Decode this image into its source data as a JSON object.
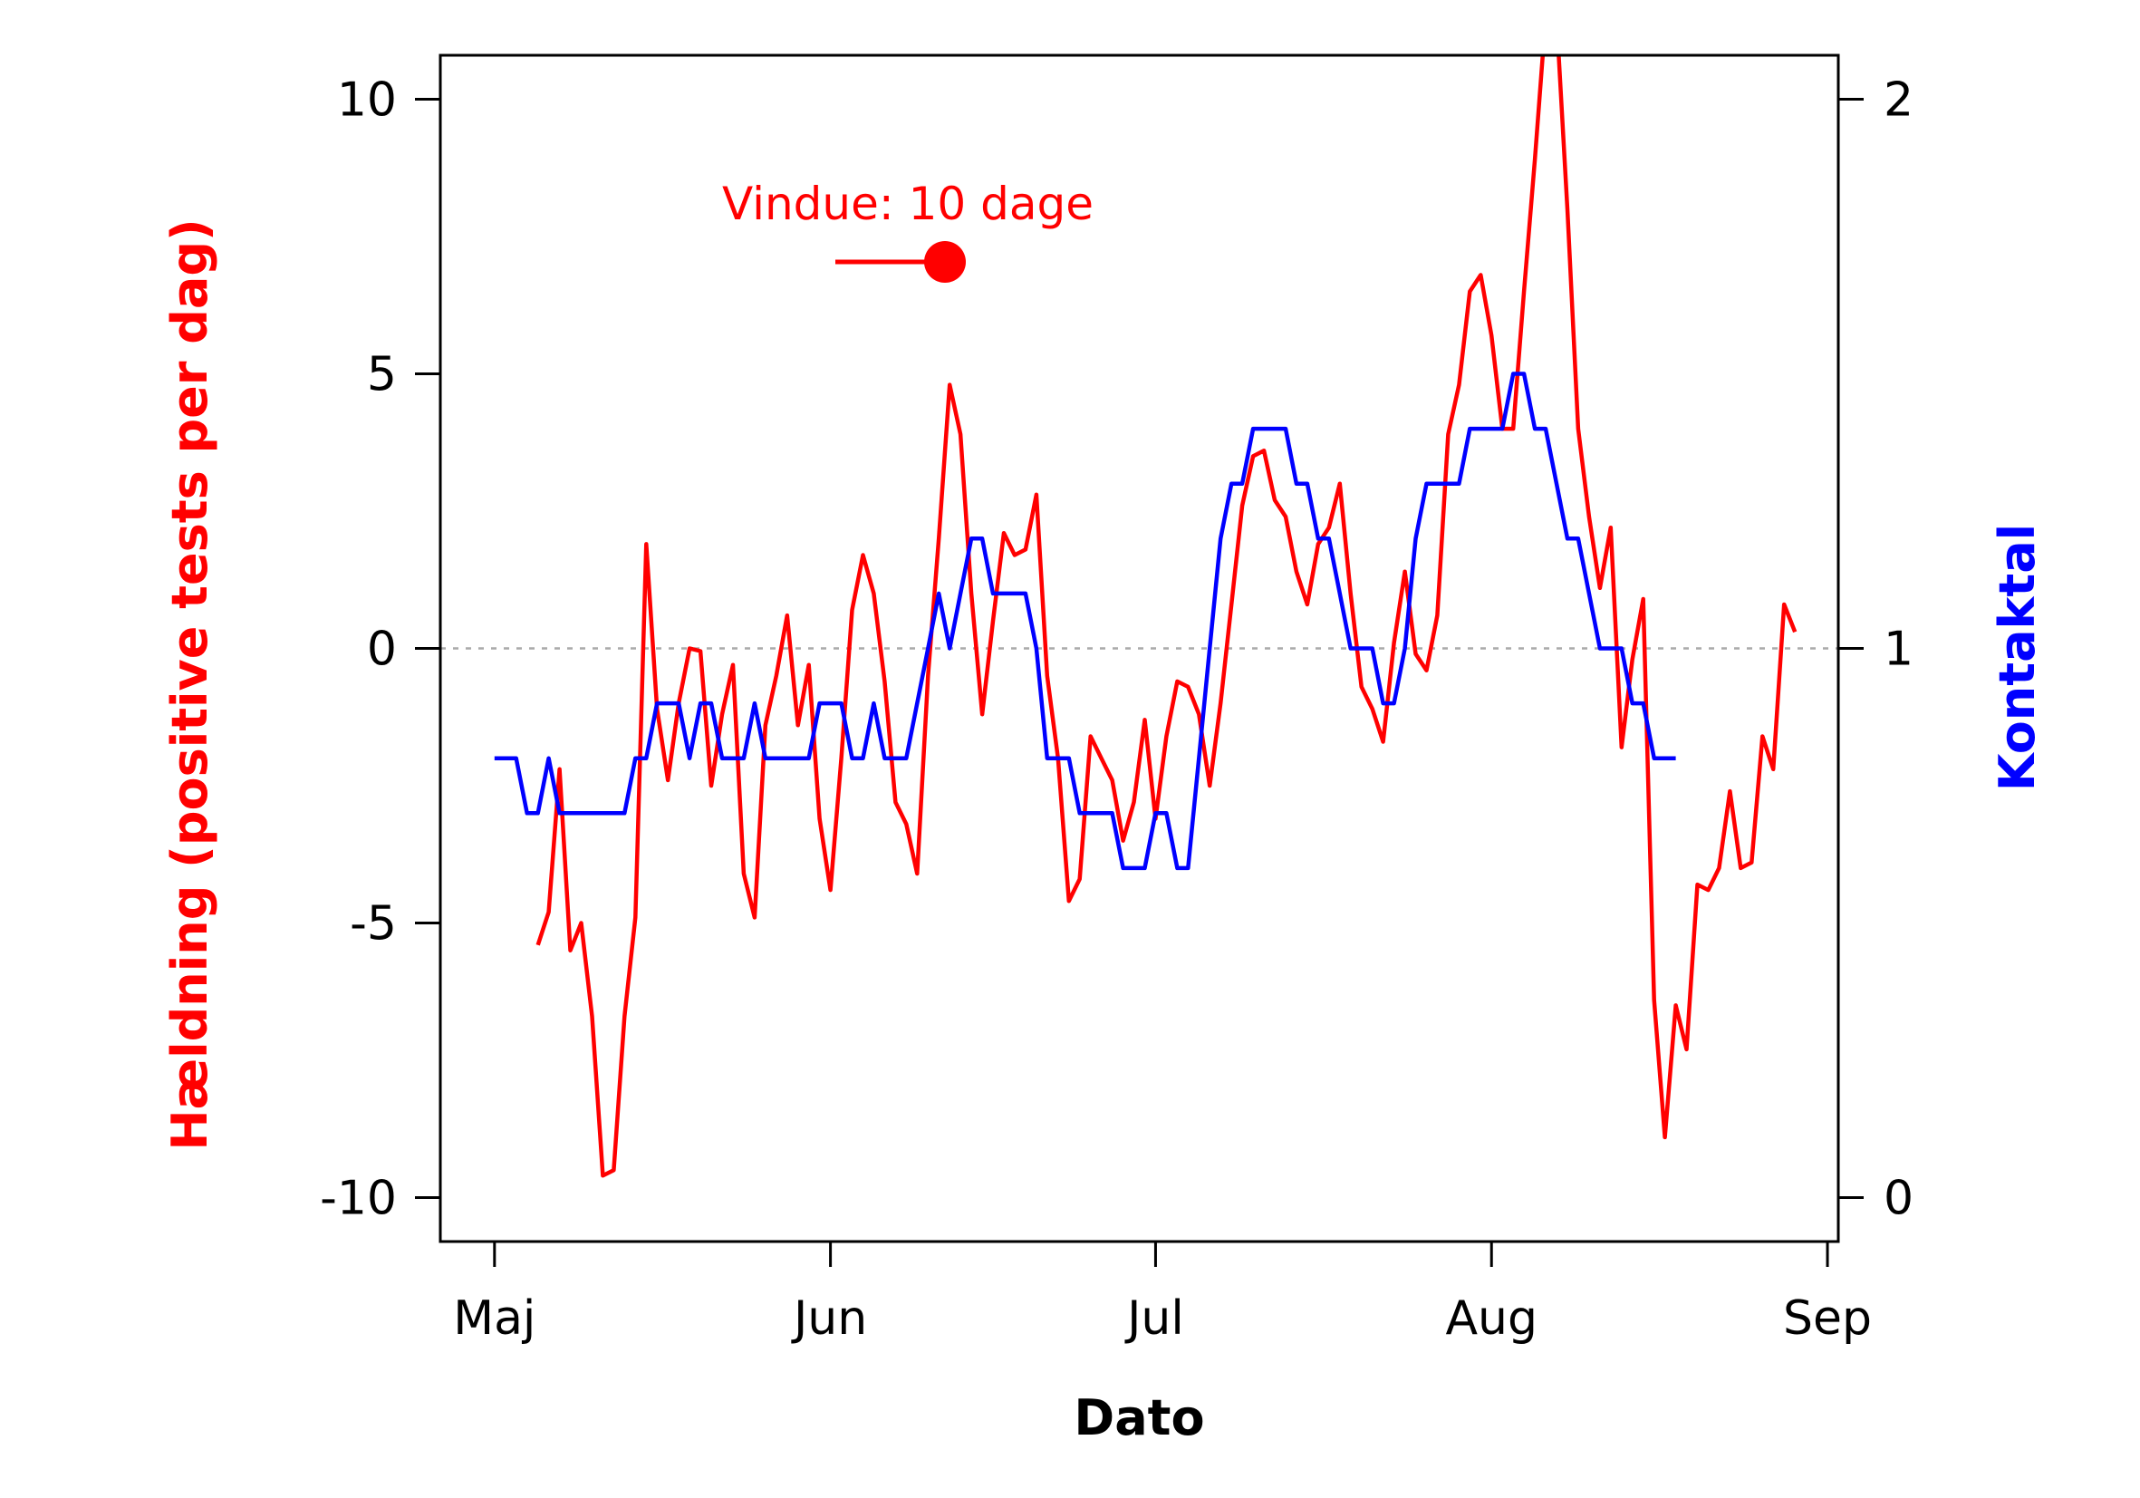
{
  "chart_data": {
    "type": "line",
    "x_axis": {
      "title": "Dato",
      "ticks": [
        {
          "label": "Maj",
          "date": "2020-05-01"
        },
        {
          "label": "Jun",
          "date": "2020-06-01"
        },
        {
          "label": "Jul",
          "date": "2020-07-01"
        },
        {
          "label": "Aug",
          "date": "2020-08-01"
        },
        {
          "label": "Sep",
          "date": "2020-09-01"
        }
      ],
      "range": [
        "2020-04-26",
        "2020-09-02"
      ]
    },
    "y_left": {
      "title": "Hældning (positive tests per dag)",
      "color": "#ff0000",
      "ticks": [
        10,
        5,
        0,
        -5,
        -10
      ],
      "tick_labels": [
        "10",
        "5",
        "0",
        "-5",
        "-10"
      ],
      "range": [
        -10.8,
        10.8
      ]
    },
    "y_right": {
      "title": "Kontaktal",
      "color": "#0000ff",
      "ticks": [
        2,
        1,
        0
      ],
      "tick_labels": [
        "2",
        "1",
        "0"
      ],
      "range": [
        -0.08,
        2.08
      ]
    },
    "reference_line": {
      "axis": "right",
      "value": 1,
      "style": "dashed",
      "color": "#aaaaaa"
    },
    "annotation": {
      "text": "Vindue: 10 dage",
      "color": "#ff0000"
    },
    "series": [
      {
        "axis": "left",
        "color": "#ff0000",
        "points": [
          [
            "2020-05-05",
            -5.4
          ],
          [
            "2020-05-06",
            -4.8
          ],
          [
            "2020-05-07",
            -2.2
          ],
          [
            "2020-05-08",
            -5.5
          ],
          [
            "2020-05-09",
            -5.0
          ],
          [
            "2020-05-10",
            -6.7
          ],
          [
            "2020-05-11",
            -9.6
          ],
          [
            "2020-05-12",
            -9.5
          ],
          [
            "2020-05-13",
            -6.7
          ],
          [
            "2020-05-14",
            -4.9
          ],
          [
            "2020-05-15",
            1.9
          ],
          [
            "2020-05-16",
            -1.1
          ],
          [
            "2020-05-17",
            -2.4
          ],
          [
            "2020-05-18",
            -1.0
          ],
          [
            "2020-05-19",
            0.0
          ],
          [
            "2020-05-20",
            -0.05
          ],
          [
            "2020-05-21",
            -2.5
          ],
          [
            "2020-05-22",
            -1.2
          ],
          [
            "2020-05-23",
            -0.3
          ],
          [
            "2020-05-24",
            -4.1
          ],
          [
            "2020-05-25",
            -4.9
          ],
          [
            "2020-05-26",
            -1.4
          ],
          [
            "2020-05-27",
            -0.5
          ],
          [
            "2020-05-28",
            0.6
          ],
          [
            "2020-05-29",
            -1.4
          ],
          [
            "2020-05-30",
            -0.3
          ],
          [
            "2020-05-31",
            -3.1
          ],
          [
            "2020-06-01",
            -4.4
          ],
          [
            "2020-06-02",
            -2.0
          ],
          [
            "2020-06-03",
            0.7
          ],
          [
            "2020-06-04",
            1.7
          ],
          [
            "2020-06-05",
            1.0
          ],
          [
            "2020-06-06",
            -0.6
          ],
          [
            "2020-06-07",
            -2.8
          ],
          [
            "2020-06-08",
            -3.2
          ],
          [
            "2020-06-09",
            -4.1
          ],
          [
            "2020-06-10",
            -0.5
          ],
          [
            "2020-06-11",
            2.0
          ],
          [
            "2020-06-12",
            4.8
          ],
          [
            "2020-06-13",
            3.9
          ],
          [
            "2020-06-14",
            1.0
          ],
          [
            "2020-06-15",
            -1.2
          ],
          [
            "2020-06-16",
            0.5
          ],
          [
            "2020-06-17",
            2.1
          ],
          [
            "2020-06-18",
            1.7
          ],
          [
            "2020-06-19",
            1.8
          ],
          [
            "2020-06-20",
            2.8
          ],
          [
            "2020-06-21",
            -0.5
          ],
          [
            "2020-06-22",
            -2.0
          ],
          [
            "2020-06-23",
            -4.6
          ],
          [
            "2020-06-24",
            -4.2
          ],
          [
            "2020-06-25",
            -1.6
          ],
          [
            "2020-06-26",
            -2.0
          ],
          [
            "2020-06-27",
            -2.4
          ],
          [
            "2020-06-28",
            -3.5
          ],
          [
            "2020-06-29",
            -2.8
          ],
          [
            "2020-06-30",
            -1.3
          ],
          [
            "2020-07-01",
            -3.1
          ],
          [
            "2020-07-02",
            -1.6
          ],
          [
            "2020-07-03",
            -0.6
          ],
          [
            "2020-07-04",
            -0.7
          ],
          [
            "2020-07-05",
            -1.2
          ],
          [
            "2020-07-06",
            -2.5
          ],
          [
            "2020-07-07",
            -1.0
          ],
          [
            "2020-07-08",
            0.8
          ],
          [
            "2020-07-09",
            2.6
          ],
          [
            "2020-07-10",
            3.5
          ],
          [
            "2020-07-11",
            3.6
          ],
          [
            "2020-07-12",
            2.7
          ],
          [
            "2020-07-13",
            2.4
          ],
          [
            "2020-07-14",
            1.4
          ],
          [
            "2020-07-15",
            0.8
          ],
          [
            "2020-07-16",
            1.9
          ],
          [
            "2020-07-17",
            2.2
          ],
          [
            "2020-07-18",
            3.0
          ],
          [
            "2020-07-19",
            1.0
          ],
          [
            "2020-07-20",
            -0.7
          ],
          [
            "2020-07-21",
            -1.1
          ],
          [
            "2020-07-22",
            -1.7
          ],
          [
            "2020-07-23",
            0.1
          ],
          [
            "2020-07-24",
            1.4
          ],
          [
            "2020-07-25",
            -0.1
          ],
          [
            "2020-07-26",
            -0.4
          ],
          [
            "2020-07-27",
            0.6
          ],
          [
            "2020-07-28",
            3.9
          ],
          [
            "2020-07-29",
            4.8
          ],
          [
            "2020-07-30",
            6.5
          ],
          [
            "2020-07-31",
            6.8
          ],
          [
            "2020-08-01",
            5.7
          ],
          [
            "2020-08-02",
            4.0
          ],
          [
            "2020-08-03",
            4.0
          ],
          [
            "2020-08-04",
            6.5
          ],
          [
            "2020-08-05",
            8.9
          ],
          [
            "2020-08-06",
            11.5
          ],
          [
            "2020-08-07",
            11.5
          ],
          [
            "2020-08-08",
            8.0
          ],
          [
            "2020-08-09",
            4.0
          ],
          [
            "2020-08-10",
            2.4
          ],
          [
            "2020-08-11",
            1.1
          ],
          [
            "2020-08-12",
            2.2
          ],
          [
            "2020-08-13",
            -1.8
          ],
          [
            "2020-08-14",
            -0.2
          ],
          [
            "2020-08-15",
            0.9
          ],
          [
            "2020-08-16",
            -6.4
          ],
          [
            "2020-08-17",
            -8.9
          ],
          [
            "2020-08-18",
            -6.5
          ],
          [
            "2020-08-19",
            -7.3
          ],
          [
            "2020-08-20",
            -4.3
          ],
          [
            "2020-08-21",
            -4.4
          ],
          [
            "2020-08-22",
            -4.0
          ],
          [
            "2020-08-23",
            -2.6
          ],
          [
            "2020-08-24",
            -4.0
          ],
          [
            "2020-08-25",
            -3.9
          ],
          [
            "2020-08-26",
            -1.6
          ],
          [
            "2020-08-27",
            -2.2
          ],
          [
            "2020-08-28",
            0.8
          ],
          [
            "2020-08-29",
            0.3
          ]
        ]
      },
      {
        "axis": "right",
        "color": "#0000ff",
        "points": [
          [
            "2020-05-01",
            0.8
          ],
          [
            "2020-05-02",
            0.8
          ],
          [
            "2020-05-03",
            0.8
          ],
          [
            "2020-05-04",
            0.7
          ],
          [
            "2020-05-05",
            0.7
          ],
          [
            "2020-05-06",
            0.8
          ],
          [
            "2020-05-07",
            0.7
          ],
          [
            "2020-05-08",
            0.7
          ],
          [
            "2020-05-09",
            0.7
          ],
          [
            "2020-05-10",
            0.7
          ],
          [
            "2020-05-11",
            0.7
          ],
          [
            "2020-05-12",
            0.7
          ],
          [
            "2020-05-13",
            0.7
          ],
          [
            "2020-05-14",
            0.8
          ],
          [
            "2020-05-15",
            0.8
          ],
          [
            "2020-05-16",
            0.9
          ],
          [
            "2020-05-17",
            0.9
          ],
          [
            "2020-05-18",
            0.9
          ],
          [
            "2020-05-19",
            0.8
          ],
          [
            "2020-05-20",
            0.9
          ],
          [
            "2020-05-21",
            0.9
          ],
          [
            "2020-05-22",
            0.8
          ],
          [
            "2020-05-23",
            0.8
          ],
          [
            "2020-05-24",
            0.8
          ],
          [
            "2020-05-25",
            0.9
          ],
          [
            "2020-05-26",
            0.8
          ],
          [
            "2020-05-27",
            0.8
          ],
          [
            "2020-05-28",
            0.8
          ],
          [
            "2020-05-29",
            0.8
          ],
          [
            "2020-05-30",
            0.8
          ],
          [
            "2020-05-31",
            0.9
          ],
          [
            "2020-06-01",
            0.9
          ],
          [
            "2020-06-02",
            0.9
          ],
          [
            "2020-06-03",
            0.8
          ],
          [
            "2020-06-04",
            0.8
          ],
          [
            "2020-06-05",
            0.9
          ],
          [
            "2020-06-06",
            0.8
          ],
          [
            "2020-06-07",
            0.8
          ],
          [
            "2020-06-08",
            0.8
          ],
          [
            "2020-06-09",
            0.9
          ],
          [
            "2020-06-10",
            1.0
          ],
          [
            "2020-06-11",
            1.1
          ],
          [
            "2020-06-12",
            1.0
          ],
          [
            "2020-06-13",
            1.1
          ],
          [
            "2020-06-14",
            1.2
          ],
          [
            "2020-06-15",
            1.2
          ],
          [
            "2020-06-16",
            1.1
          ],
          [
            "2020-06-17",
            1.1
          ],
          [
            "2020-06-18",
            1.1
          ],
          [
            "2020-06-19",
            1.1
          ],
          [
            "2020-06-20",
            1.0
          ],
          [
            "2020-06-21",
            0.8
          ],
          [
            "2020-06-22",
            0.8
          ],
          [
            "2020-06-23",
            0.8
          ],
          [
            "2020-06-24",
            0.7
          ],
          [
            "2020-06-25",
            0.7
          ],
          [
            "2020-06-26",
            0.7
          ],
          [
            "2020-06-27",
            0.7
          ],
          [
            "2020-06-28",
            0.6
          ],
          [
            "2020-06-29",
            0.6
          ],
          [
            "2020-06-30",
            0.6
          ],
          [
            "2020-07-01",
            0.7
          ],
          [
            "2020-07-02",
            0.7
          ],
          [
            "2020-07-03",
            0.6
          ],
          [
            "2020-07-04",
            0.6
          ],
          [
            "2020-07-05",
            0.8
          ],
          [
            "2020-07-06",
            1.0
          ],
          [
            "2020-07-07",
            1.2
          ],
          [
            "2020-07-08",
            1.3
          ],
          [
            "2020-07-09",
            1.3
          ],
          [
            "2020-07-10",
            1.4
          ],
          [
            "2020-07-11",
            1.4
          ],
          [
            "2020-07-12",
            1.4
          ],
          [
            "2020-07-13",
            1.4
          ],
          [
            "2020-07-14",
            1.3
          ],
          [
            "2020-07-15",
            1.3
          ],
          [
            "2020-07-16",
            1.2
          ],
          [
            "2020-07-17",
            1.2
          ],
          [
            "2020-07-18",
            1.1
          ],
          [
            "2020-07-19",
            1.0
          ],
          [
            "2020-07-20",
            1.0
          ],
          [
            "2020-07-21",
            1.0
          ],
          [
            "2020-07-22",
            0.9
          ],
          [
            "2020-07-23",
            0.9
          ],
          [
            "2020-07-24",
            1.0
          ],
          [
            "2020-07-25",
            1.2
          ],
          [
            "2020-07-26",
            1.3
          ],
          [
            "2020-07-27",
            1.3
          ],
          [
            "2020-07-28",
            1.3
          ],
          [
            "2020-07-29",
            1.3
          ],
          [
            "2020-07-30",
            1.4
          ],
          [
            "2020-07-31",
            1.4
          ],
          [
            "2020-08-01",
            1.4
          ],
          [
            "2020-08-02",
            1.4
          ],
          [
            "2020-08-03",
            1.5
          ],
          [
            "2020-08-04",
            1.5
          ],
          [
            "2020-08-05",
            1.4
          ],
          [
            "2020-08-06",
            1.4
          ],
          [
            "2020-08-07",
            1.3
          ],
          [
            "2020-08-08",
            1.2
          ],
          [
            "2020-08-09",
            1.2
          ],
          [
            "2020-08-10",
            1.1
          ],
          [
            "2020-08-11",
            1.0
          ],
          [
            "2020-08-12",
            1.0
          ],
          [
            "2020-08-13",
            1.0
          ],
          [
            "2020-08-14",
            0.9
          ],
          [
            "2020-08-15",
            0.9
          ],
          [
            "2020-08-16",
            0.8
          ],
          [
            "2020-08-17",
            0.8
          ],
          [
            "2020-08-18",
            0.8
          ]
        ]
      }
    ],
    "grid": false
  }
}
